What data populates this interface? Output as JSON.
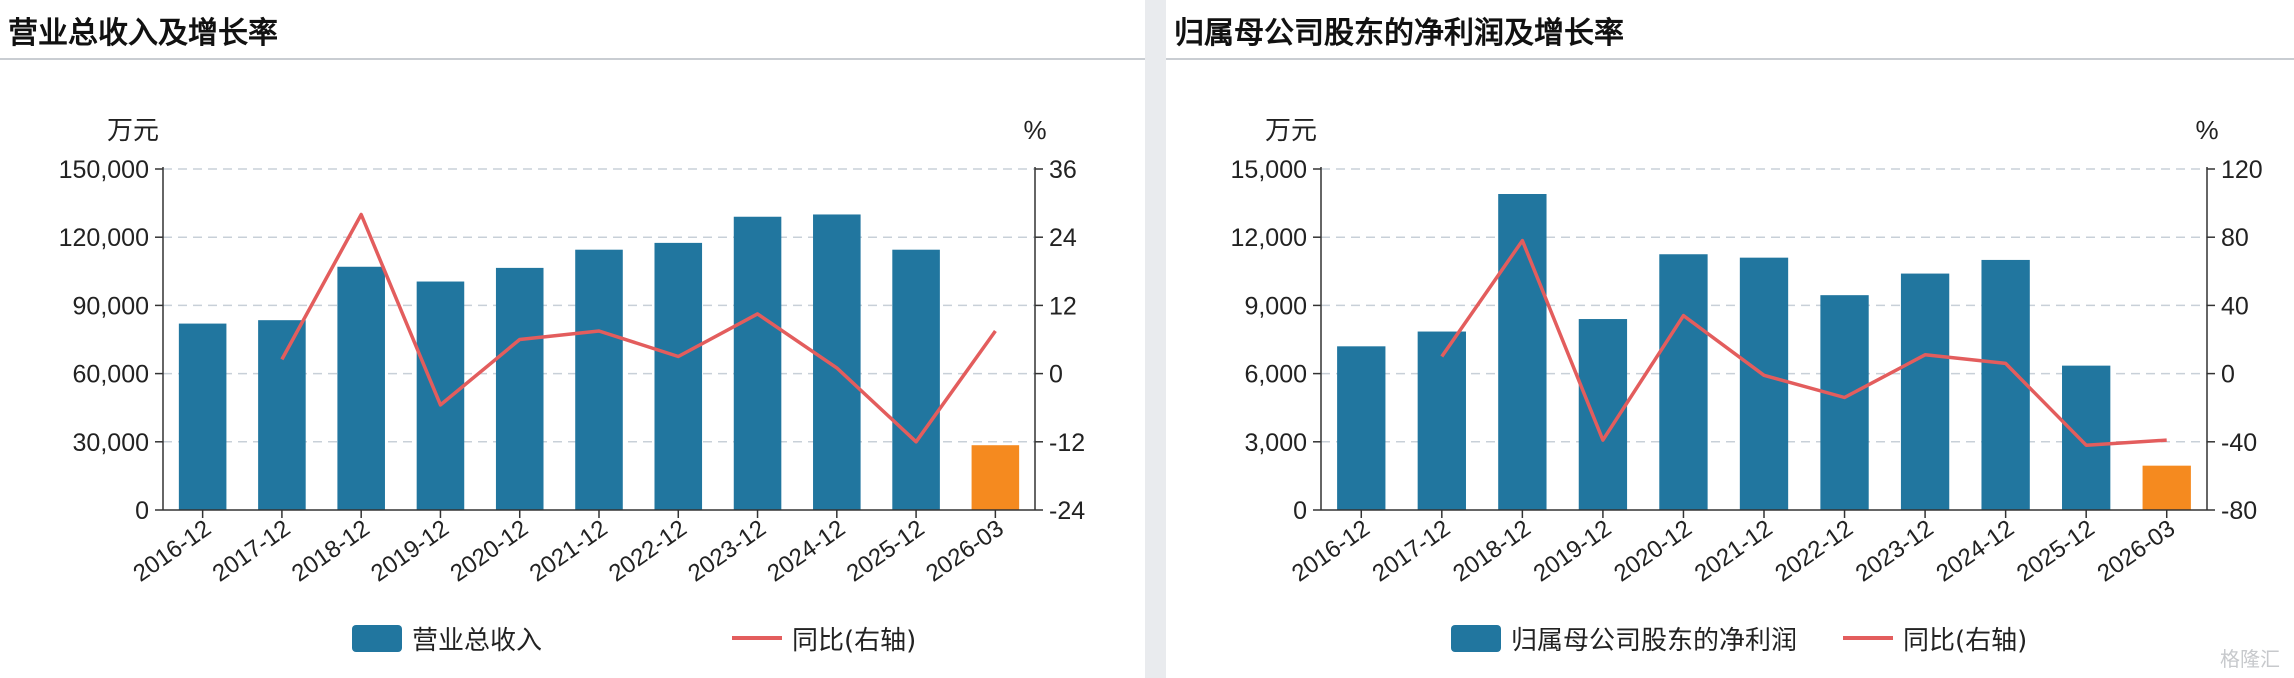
{
  "panels": [
    {
      "title": "营业总收入及增长率",
      "chart_data": {
        "type": "bar",
        "title": "营业总收入及增长率",
        "categories": [
          "2016-12",
          "2017-12",
          "2018-12",
          "2019-12",
          "2020-12",
          "2021-12",
          "2022-12",
          "2023-12",
          "2024-12",
          "2025-12",
          "2026-03"
        ],
        "left_unit": "万元",
        "right_unit": "%",
        "ylim": [
          0,
          150000
        ],
        "y_ticks": [
          "0",
          "30,000",
          "60,000",
          "90,000",
          "120,000",
          "150,000"
        ],
        "y2lim": [
          -24,
          36
        ],
        "y2_ticks": [
          "-24",
          "-12",
          "0",
          "12",
          "24",
          "36"
        ],
        "grid": true,
        "legend_position": "bottom",
        "series": [
          {
            "name": "营业总收入",
            "type": "bar",
            "values": [
              82000,
              83500,
              107000,
              100500,
              106500,
              114500,
              117500,
              129000,
              130000,
              114500,
              28500
            ]
          },
          {
            "name": "同比(右轴)",
            "type": "line",
            "values": [
              null,
              2.5,
              28,
              -5.5,
              6,
              7.5,
              3,
              10.5,
              1,
              -12,
              7.5
            ]
          }
        ],
        "highlight_last": true
      }
    },
    {
      "title": "归属母公司股东的净利润及增长率",
      "chart_data": {
        "type": "bar",
        "title": "归属母公司股东的净利润及增长率",
        "categories": [
          "2016-12",
          "2017-12",
          "2018-12",
          "2019-12",
          "2020-12",
          "2021-12",
          "2022-12",
          "2023-12",
          "2024-12",
          "2025-12",
          "2026-03"
        ],
        "left_unit": "万元",
        "right_unit": "%",
        "ylim": [
          0,
          15000
        ],
        "y_ticks": [
          "0",
          "3,000",
          "6,000",
          "9,000",
          "12,000",
          "15,000"
        ],
        "y2lim": [
          -80,
          120
        ],
        "y2_ticks": [
          "-80",
          "-40",
          "0",
          "40",
          "80",
          "120"
        ],
        "grid": true,
        "legend_position": "bottom",
        "series": [
          {
            "name": "归属母公司股东的净利润",
            "type": "bar",
            "values": [
              7200,
              7850,
              13900,
              8400,
              11250,
              11100,
              9450,
              10400,
              11000,
              6350,
              1950
            ]
          },
          {
            "name": "同比(右轴)",
            "type": "line",
            "values": [
              null,
              10,
              78,
              -39,
              34,
              -1,
              -14,
              11,
              6,
              -42,
              -39
            ]
          }
        ],
        "highlight_last": true
      }
    }
  ],
  "colors": {
    "bar": "#21769f",
    "bar_highlight": "#f58a1f",
    "line": "#e35d5d",
    "grid": "#c8d0d8",
    "axis": "#333333"
  },
  "watermark": "格隆汇"
}
